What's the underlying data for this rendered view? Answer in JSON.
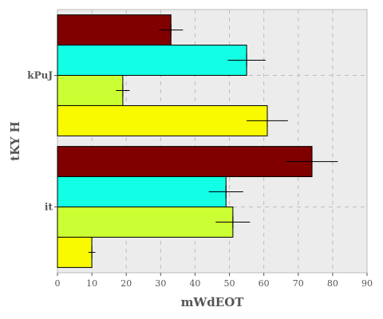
{
  "chart_data": {
    "type": "bar",
    "orientation": "horizontal",
    "categories": [
      "kPuJ",
      "it"
    ],
    "series": [
      {
        "color": "#800000",
        "values": [
          33,
          74
        ],
        "errors": [
          3.5,
          7.5
        ]
      },
      {
        "color": "#12FFE5",
        "values": [
          55,
          49
        ],
        "errors": [
          5.5,
          5
        ]
      },
      {
        "color": "#CCFF33",
        "values": [
          19,
          51
        ],
        "errors": [
          2,
          5
        ]
      },
      {
        "color": "#F9F900",
        "values": [
          61,
          10
        ],
        "errors": [
          6,
          1
        ]
      }
    ],
    "xlabel": "mWdEOT",
    "ylabel": "tKY H",
    "xlim": [
      0,
      90
    ],
    "xticks": [
      0,
      10,
      20,
      30,
      40,
      50,
      60,
      70,
      80,
      90
    ],
    "grid": true,
    "legend": "none",
    "colors": {
      "plot_background": "#ECECEC",
      "grid": "#BDBDBD",
      "axis_text": "#555555"
    }
  }
}
